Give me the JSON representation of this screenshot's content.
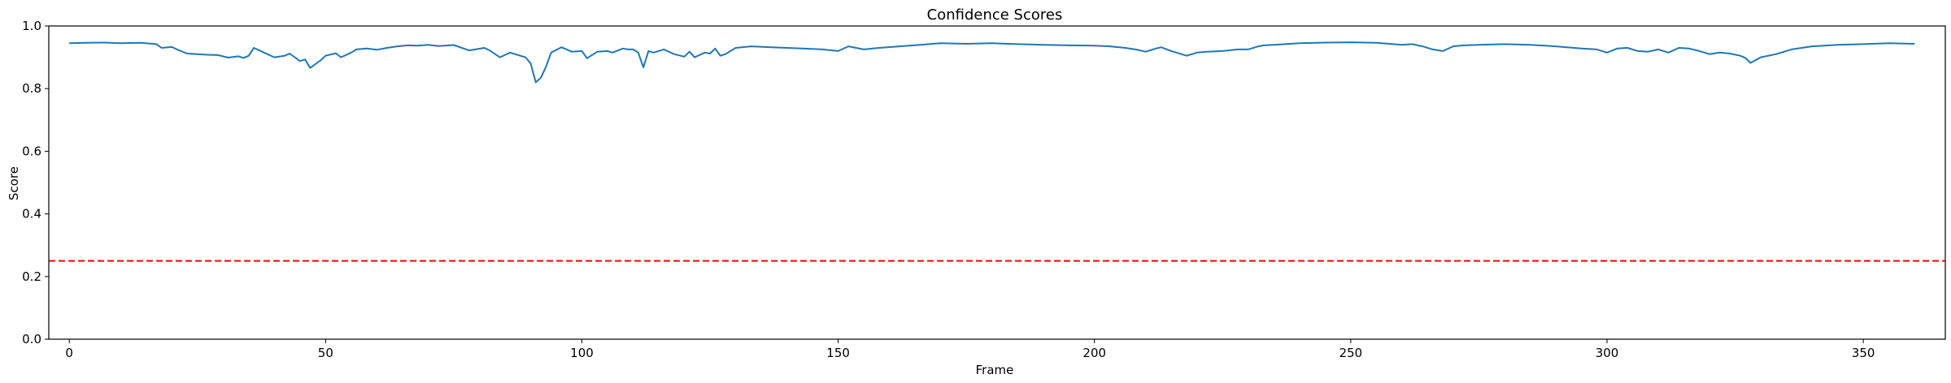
{
  "chart_data": {
    "type": "line",
    "title": "Confidence Scores",
    "xlabel": "Frame",
    "ylabel": "Score",
    "xlim": [
      -4,
      366
    ],
    "ylim": [
      0.0,
      1.0
    ],
    "xticks": [
      0,
      50,
      100,
      150,
      200,
      250,
      300,
      350
    ],
    "yticks": [
      0.0,
      0.2,
      0.4,
      0.6,
      0.8,
      1.0
    ],
    "xtick_labels": [
      "0",
      "50",
      "100",
      "150",
      "200",
      "250",
      "300",
      "350"
    ],
    "ytick_labels": [
      "0.0",
      "0.2",
      "0.4",
      "0.6",
      "0.8",
      "1.0"
    ],
    "grid": false,
    "series": [
      {
        "color": "#1f77b4",
        "x": [
          0,
          3,
          7,
          10,
          14,
          17,
          18,
          20,
          21,
          23,
          25,
          27,
          29,
          31,
          33,
          34,
          35,
          36,
          38,
          40,
          42,
          43,
          45,
          46,
          47,
          49,
          50,
          52,
          53,
          55,
          56,
          58,
          60,
          62,
          64,
          66,
          68,
          70,
          72,
          75,
          78,
          81,
          82,
          84,
          86,
          88,
          89,
          90,
          91,
          92,
          93,
          94,
          96,
          98,
          100,
          101,
          103,
          105,
          106,
          108,
          109,
          110,
          111,
          112,
          113,
          114,
          116,
          118,
          120,
          121,
          122,
          124,
          125,
          126,
          127,
          128,
          130,
          133,
          137,
          140,
          143,
          147,
          150,
          152,
          155,
          158,
          162,
          166,
          170,
          175,
          180,
          185,
          190,
          195,
          200,
          203,
          206,
          208,
          210,
          212,
          213,
          215,
          216,
          218,
          220,
          222,
          225,
          228,
          230,
          232,
          233,
          235,
          240,
          245,
          250,
          255,
          260,
          262,
          264,
          266,
          268,
          270,
          272,
          275,
          280,
          285,
          290,
          295,
          298,
          300,
          302,
          304,
          306,
          308,
          310,
          312,
          314,
          316,
          318,
          320,
          322,
          324,
          326,
          327,
          328,
          330,
          333,
          336,
          340,
          345,
          350,
          355,
          360
        ],
        "values": [
          0.945,
          0.946,
          0.947,
          0.945,
          0.946,
          0.942,
          0.93,
          0.933,
          0.925,
          0.912,
          0.91,
          0.908,
          0.907,
          0.899,
          0.903,
          0.898,
          0.905,
          0.93,
          0.915,
          0.9,
          0.905,
          0.912,
          0.888,
          0.893,
          0.866,
          0.89,
          0.905,
          0.913,
          0.9,
          0.915,
          0.925,
          0.928,
          0.924,
          0.93,
          0.935,
          0.938,
          0.937,
          0.94,
          0.936,
          0.939,
          0.922,
          0.93,
          0.922,
          0.9,
          0.915,
          0.905,
          0.9,
          0.88,
          0.82,
          0.835,
          0.87,
          0.915,
          0.932,
          0.918,
          0.92,
          0.897,
          0.918,
          0.92,
          0.915,
          0.928,
          0.925,
          0.925,
          0.915,
          0.868,
          0.92,
          0.915,
          0.925,
          0.91,
          0.902,
          0.918,
          0.9,
          0.915,
          0.912,
          0.928,
          0.905,
          0.91,
          0.93,
          0.935,
          0.932,
          0.93,
          0.928,
          0.925,
          0.92,
          0.935,
          0.925,
          0.93,
          0.935,
          0.94,
          0.945,
          0.943,
          0.945,
          0.942,
          0.94,
          0.938,
          0.937,
          0.935,
          0.93,
          0.925,
          0.918,
          0.928,
          0.932,
          0.92,
          0.915,
          0.905,
          0.915,
          0.918,
          0.92,
          0.925,
          0.925,
          0.935,
          0.938,
          0.94,
          0.945,
          0.947,
          0.948,
          0.946,
          0.94,
          0.942,
          0.935,
          0.925,
          0.92,
          0.935,
          0.938,
          0.94,
          0.942,
          0.94,
          0.935,
          0.928,
          0.925,
          0.915,
          0.928,
          0.93,
          0.92,
          0.918,
          0.925,
          0.915,
          0.93,
          0.928,
          0.92,
          0.91,
          0.915,
          0.912,
          0.905,
          0.898,
          0.882,
          0.9,
          0.91,
          0.925,
          0.935,
          0.94,
          0.942,
          0.945,
          0.943
        ]
      }
    ],
    "reference_lines": [
      {
        "orientation": "horizontal",
        "y": 0.25,
        "color": "#ff0000",
        "style": "dashed"
      }
    ]
  }
}
